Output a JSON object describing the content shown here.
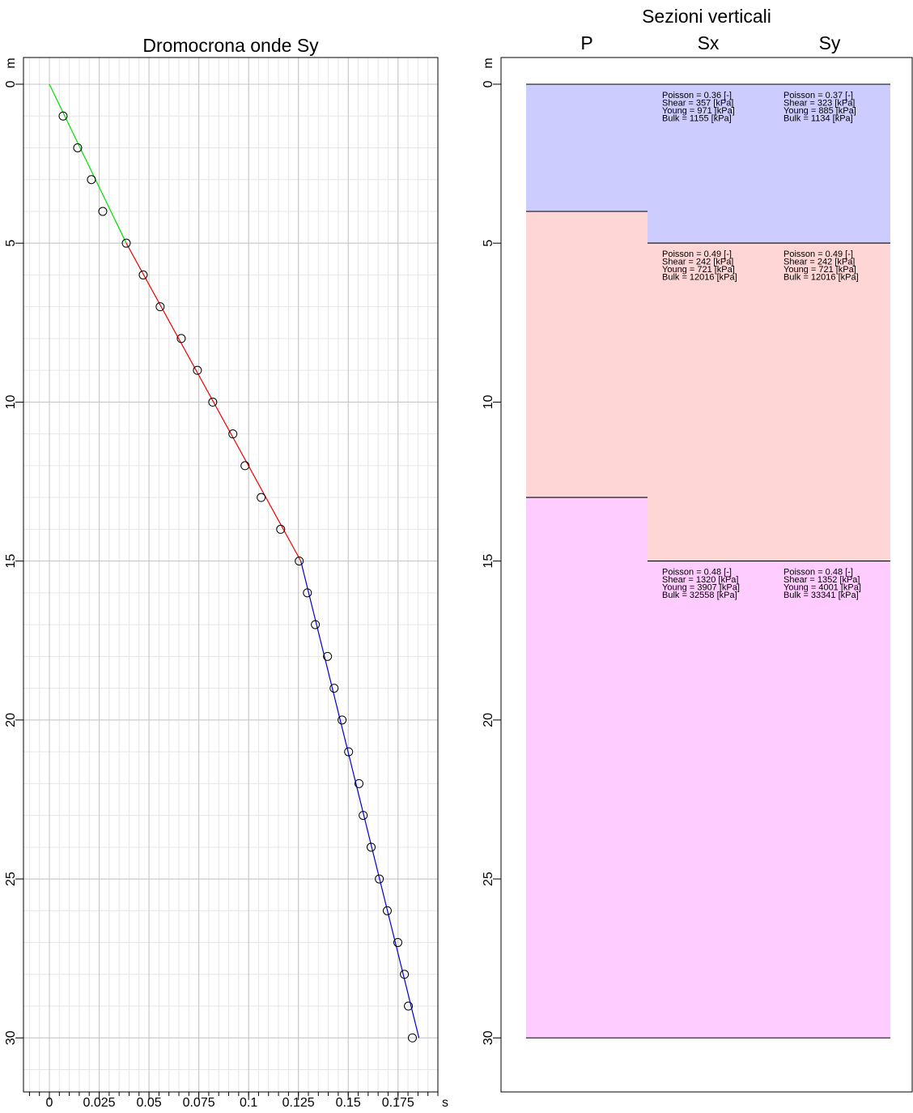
{
  "chart_data": [
    {
      "type": "scatter",
      "title": "Dromocrona onde Sy",
      "xlabel": "s",
      "ylabel": "m",
      "x": [
        0.0069,
        0.0142,
        0.0211,
        0.0268,
        0.0386,
        0.0471,
        0.0556,
        0.0662,
        0.0743,
        0.082,
        0.0921,
        0.0982,
        0.1063,
        0.1161,
        0.1254,
        0.1295,
        0.1335,
        0.1396,
        0.1429,
        0.1469,
        0.1502,
        0.1554,
        0.1575,
        0.1615,
        0.1656,
        0.1696,
        0.1749,
        0.1782,
        0.1802,
        0.1822
      ],
      "y": [
        1,
        2,
        3,
        4,
        5,
        6,
        7,
        8,
        9,
        10,
        11,
        12,
        13,
        14,
        15,
        16,
        17,
        18,
        19,
        20,
        21,
        22,
        23,
        24,
        25,
        26,
        27,
        28,
        29,
        30
      ],
      "fits": [
        {
          "color": "#00dd00",
          "x": [
            0,
            0.0386
          ],
          "y": [
            0,
            5
          ]
        },
        {
          "color": "#ee0000",
          "x": [
            0.0386,
            0.1262
          ],
          "y": [
            5,
            15
          ]
        },
        {
          "color": "#0000cc",
          "x": [
            0.1262,
            0.1855
          ],
          "y": [
            15,
            30
          ]
        }
      ],
      "xlim": [
        -0.013,
        0.195
      ],
      "ylim": [
        -0.84,
        31.7
      ],
      "y_inverted": true,
      "xticks": [
        0,
        0.025,
        0.05,
        0.075,
        0.1,
        0.125,
        0.15,
        0.175
      ],
      "yticks": [
        0,
        5,
        10,
        15,
        20,
        25,
        30
      ],
      "grid": true,
      "minor_xstep": 0.005,
      "minor_ystep": 1
    },
    {
      "type": "sections",
      "title": "Sezioni verticali",
      "ylabel": "m",
      "ylim": [
        -0.84,
        31.7
      ],
      "y_inverted": true,
      "yticks": [
        0,
        5,
        10,
        15,
        20,
        25,
        30
      ],
      "columns": [
        {
          "name": "P",
          "layers": [
            {
              "top": 0,
              "bottom": 4,
              "color": "#ccccff"
            },
            {
              "top": 4,
              "bottom": 13,
              "color": "#ffd6d6"
            },
            {
              "top": 13,
              "bottom": 30,
              "color": "#ffccff"
            }
          ]
        },
        {
          "name": "Sx",
          "layers": [
            {
              "top": 0,
              "bottom": 5,
              "color": "#ccccff",
              "text": [
                "Poisson = 0.36 [-]",
                "Shear = 357 [kPa]",
                "Young = 971 [kPa]",
                "Bulk = 1155 [kPa]"
              ]
            },
            {
              "top": 5,
              "bottom": 15,
              "color": "#ffd6d6",
              "text": [
                "Poisson = 0.49 [-]",
                "Shear = 242 [kPa]",
                "Young = 721 [kPa]",
                "Bulk = 12016 [kPa]"
              ]
            },
            {
              "top": 15,
              "bottom": 30,
              "color": "#ffccff",
              "text": [
                "Poisson = 0.48 [-]",
                "Shear = 1320 [kPa]",
                "Young = 3907 [kPa]",
                "Bulk = 32558 [kPa]"
              ]
            }
          ]
        },
        {
          "name": "Sy",
          "layers": [
            {
              "top": 0,
              "bottom": 5,
              "color": "#ccccff",
              "text": [
                "Poisson = 0.37 [-]",
                "Shear = 323 [kPa]",
                "Young = 885 [kPa]",
                "Bulk = 1134 [kPa]"
              ]
            },
            {
              "top": 5,
              "bottom": 15,
              "color": "#ffd6d6",
              "text": [
                "Poisson = 0.49 [-]",
                "Shear = 242 [kPa]",
                "Young = 721 [kPa]",
                "Bulk = 12016 [kPa]"
              ]
            },
            {
              "top": 15,
              "bottom": 30,
              "color": "#ffccff",
              "text": [
                "Poisson = 0.48 [-]",
                "Shear = 1352 [kPa]",
                "Young = 4001 [kPa]",
                "Bulk = 33341 [kPa]"
              ]
            }
          ]
        }
      ]
    }
  ]
}
